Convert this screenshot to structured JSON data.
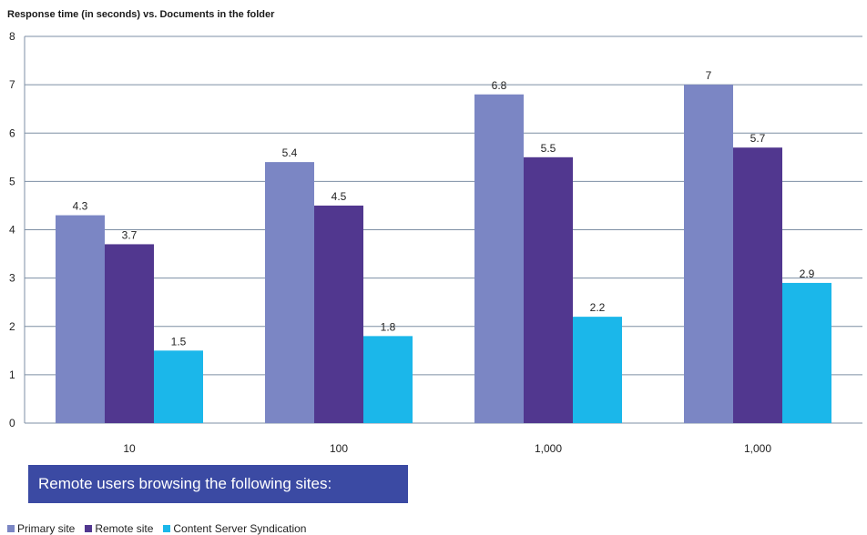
{
  "chart_data": {
    "type": "bar",
    "title": "Response time (in seconds) vs. Documents in the folder",
    "categories": [
      "10",
      "100",
      "1,000",
      "1,000"
    ],
    "series": [
      {
        "name": "Primary site",
        "color": "#7b86c4",
        "values": [
          4.3,
          5.4,
          6.8,
          7
        ],
        "labels": [
          "4.3",
          "5.4",
          "6.8",
          "7"
        ]
      },
      {
        "name": "Remote site",
        "color": "#51378f",
        "values": [
          3.7,
          4.5,
          5.5,
          5.7
        ],
        "labels": [
          "3.7",
          "4.5",
          "5.5",
          "5.7"
        ]
      },
      {
        "name": "Content Server Syndication",
        "color": "#1bb7ea",
        "values": [
          1.5,
          1.8,
          2.2,
          2.9
        ],
        "labels": [
          "1.5",
          "1.8",
          "2.2",
          "2.9"
        ]
      }
    ],
    "ylim": [
      0,
      8
    ],
    "yticks": [
      "0",
      "1",
      "2",
      "3",
      "4",
      "5",
      "6",
      "7",
      "8"
    ],
    "grid": true,
    "legend_position": "bottom-left"
  },
  "banner_text": "Remote users browsing the following sites:",
  "colors": {
    "grid": "#7d8fa4",
    "banner": "#3b4aa3"
  }
}
